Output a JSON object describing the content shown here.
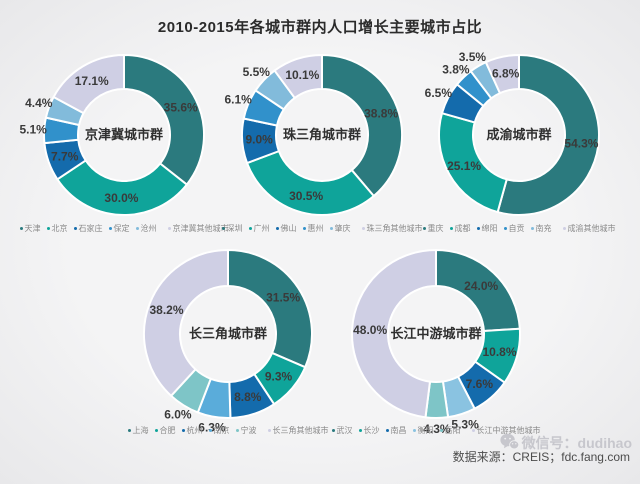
{
  "title": "2010-2015年各城市群内人口增长主要城市占比",
  "source_text": "数据来源：CREIS；fdc.fang.com",
  "watermark": {
    "icon": "wechat-icon",
    "text": "微信号：dudihao"
  },
  "palette": {
    "dark_teal": "#2b7a7e",
    "teal_green": "#0fa49a",
    "dark_blue": "#146bac",
    "medium_blue": "#3191cb",
    "light_blue": "#82bbdb",
    "light_cyan": "#7ec5c7",
    "lavender": "#cfcfe4"
  },
  "chart_data": [
    {
      "type": "pie",
      "variant": "donut",
      "name": "京津冀城市群",
      "categories": [
        "天津",
        "北京",
        "石家庄",
        "保定",
        "沧州",
        "京津冀其他城市"
      ],
      "values": [
        35.6,
        30.0,
        7.7,
        5.1,
        4.4,
        17.1
      ],
      "labels": [
        "35.6%",
        "30.0%",
        "7.7%",
        "5.1%",
        "4.4%",
        "17.1%"
      ],
      "colors": [
        "#2b7a7e",
        "#0fa49a",
        "#146bac",
        "#3191cb",
        "#82bbdb",
        "#cfcfe4"
      ],
      "start_angle": "top",
      "direction": "clockwise",
      "legend_position": "bottom"
    },
    {
      "type": "pie",
      "variant": "donut",
      "name": "珠三角城市群",
      "categories": [
        "深圳",
        "广州",
        "佛山",
        "惠州",
        "肇庆",
        "珠三角其他城市"
      ],
      "values": [
        38.8,
        30.5,
        9.0,
        6.1,
        5.5,
        10.1
      ],
      "labels": [
        "38.8%",
        "30.5%",
        "9.0%",
        "6.1%",
        "5.5%",
        "10.1%"
      ],
      "colors": [
        "#2b7a7e",
        "#0fa49a",
        "#146bac",
        "#3191cb",
        "#82bbdb",
        "#cfcfe4"
      ],
      "start_angle": "top",
      "direction": "clockwise",
      "legend_position": "bottom"
    },
    {
      "type": "pie",
      "variant": "donut",
      "name": "成渝城市群",
      "categories": [
        "重庆",
        "成都",
        "绵阳",
        "自贡",
        "南充",
        "成渝其他城市"
      ],
      "values": [
        54.3,
        25.1,
        6.5,
        3.8,
        3.5,
        6.8
      ],
      "labels": [
        "54.3%",
        "25.1%",
        "6.5%",
        "3.8%",
        "3.5%",
        "6.8%"
      ],
      "colors": [
        "#2b7a7e",
        "#0fa49a",
        "#146bac",
        "#3191cb",
        "#82bbdb",
        "#cfcfe4"
      ],
      "start_angle": "top",
      "direction": "clockwise",
      "legend_position": "bottom"
    },
    {
      "type": "pie",
      "variant": "donut",
      "name": "长三角城市群",
      "categories": [
        "上海",
        "合肥",
        "杭州",
        "南京",
        "宁波",
        "长三角其他城市"
      ],
      "values": [
        31.5,
        9.3,
        8.8,
        6.3,
        6.0,
        38.2
      ],
      "labels": [
        "31.5%",
        "9.3%",
        "8.8%",
        "6.3%",
        "6.0%",
        "38.2%"
      ],
      "colors": [
        "#2b7a7e",
        "#0fa49a",
        "#146bac",
        "#5aacda",
        "#7ec5c7",
        "#cfcfe4"
      ],
      "start_angle": "top",
      "direction": "clockwise",
      "legend_position": "bottom"
    },
    {
      "type": "pie",
      "variant": "donut",
      "name": "长江中游城市群",
      "categories": [
        "武汉",
        "长沙",
        "南昌",
        "衡阳",
        "岳阳",
        "长江中游其他城市"
      ],
      "values": [
        24.0,
        10.8,
        7.6,
        5.3,
        4.3,
        48.0
      ],
      "labels": [
        "24.0%",
        "10.8%",
        "7.6%",
        "5.3%",
        "4.3%",
        "48.0%"
      ],
      "colors": [
        "#2b7a7e",
        "#0fa49a",
        "#146bac",
        "#8ac3e1",
        "#7ec5c7",
        "#cfcfe4"
      ],
      "start_angle": "top",
      "direction": "clockwise",
      "legend_position": "bottom"
    }
  ]
}
